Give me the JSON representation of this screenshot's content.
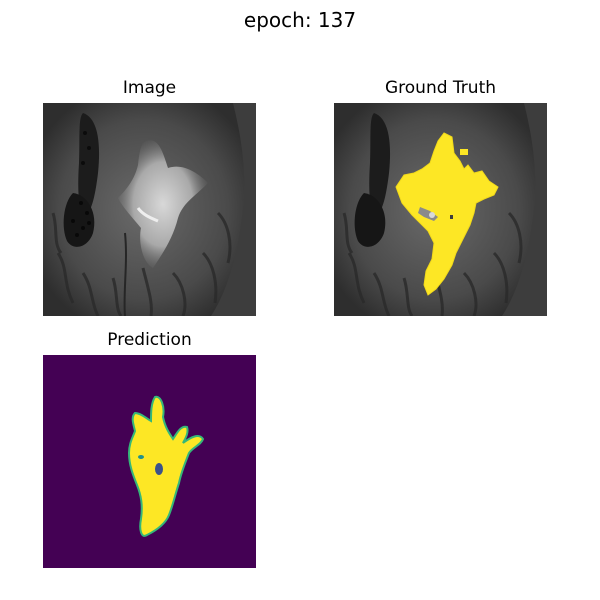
{
  "figure": {
    "suptitle": "epoch: 137"
  },
  "panels": [
    {
      "title": "Image",
      "content": "mri-scan"
    },
    {
      "title": "Ground Truth",
      "content": "mri-scan-with-lesion-mask-overlay"
    },
    {
      "title": "Prediction",
      "content": "predicted-lesion-mask"
    }
  ],
  "colors": {
    "mask_fill": "#fde725",
    "mask_edge": "#21918c",
    "prediction_background": "#440154",
    "scan_background": "#3b3b3b"
  }
}
